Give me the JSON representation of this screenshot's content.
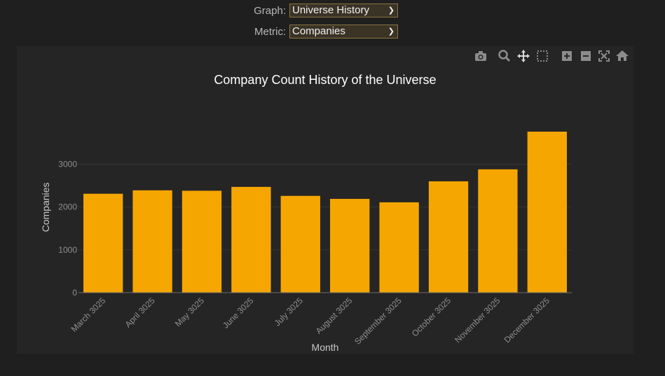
{
  "controls": {
    "graph_label": "Graph:",
    "graph_value": "Universe History",
    "metric_label": "Metric:",
    "metric_value": "Companies"
  },
  "modebar": {
    "icons": [
      "camera-icon",
      "zoom-icon",
      "pan-icon",
      "box-select-icon",
      "zoom-in-icon",
      "zoom-out-icon",
      "autoscale-icon",
      "home-icon"
    ]
  },
  "colors": {
    "bar": "#f6a600",
    "background": "#1f1f1f",
    "plot_background": "#252525",
    "grid": "#363636"
  },
  "chart_data": {
    "type": "bar",
    "title": "Company Count History of the Universe",
    "xlabel": "Month",
    "ylabel": "Companies",
    "categories": [
      "March 3025",
      "April 3025",
      "May 3025",
      "June 3025",
      "July 3025",
      "August 3025",
      "September 3025",
      "October 3025",
      "November 3025",
      "December 3025"
    ],
    "values": [
      2310,
      2390,
      2380,
      2470,
      2260,
      2190,
      2110,
      2600,
      2880,
      3760
    ],
    "ylim": [
      0,
      3760
    ],
    "yticks": [
      0,
      1000,
      2000,
      3000
    ],
    "grid": true
  }
}
